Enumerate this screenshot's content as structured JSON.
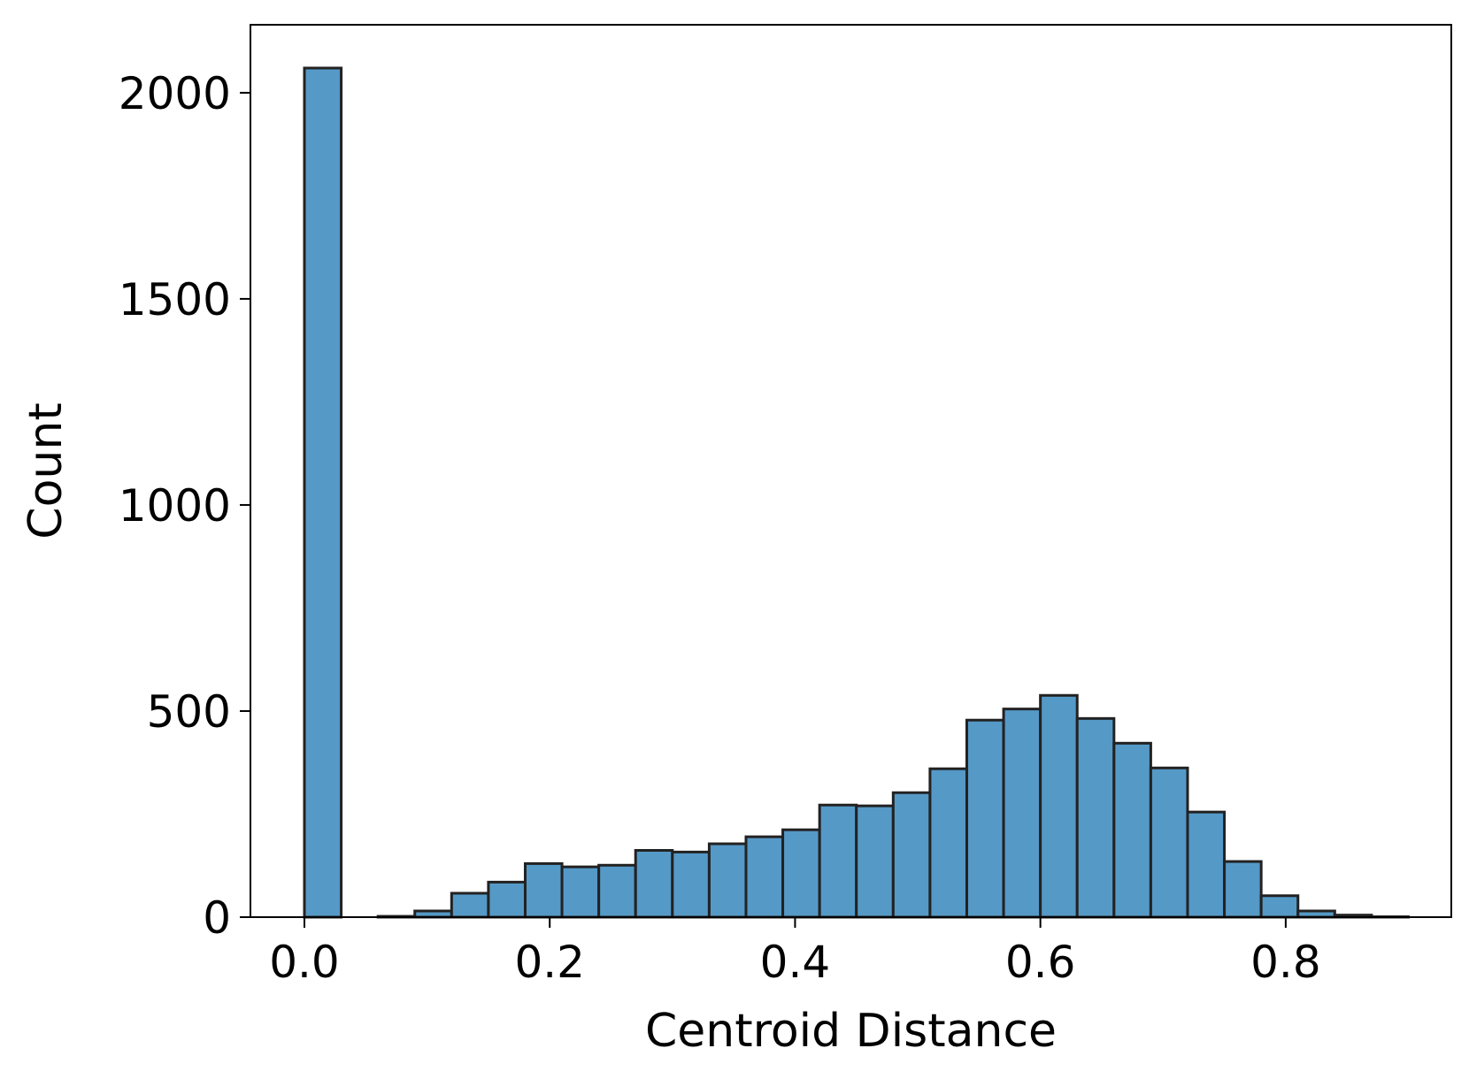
{
  "chart_data": {
    "type": "bar",
    "title": "",
    "xlabel": "Centroid Distance",
    "ylabel": "Count",
    "xlim": [
      -0.044,
      0.935
    ],
    "ylim": [
      0,
      2165
    ],
    "grid": false,
    "bar_color": "#5599c7",
    "edge_color": "#222222",
    "x_ticks": [
      0.0,
      0.2,
      0.4,
      0.6,
      0.8
    ],
    "x_tick_labels": [
      "0.0",
      "0.2",
      "0.4",
      "0.6",
      "0.8"
    ],
    "y_ticks": [
      0,
      500,
      1000,
      1500,
      2000
    ],
    "y_tick_labels": [
      "0",
      "500",
      "1000",
      "1500",
      "2000"
    ],
    "bins": [
      {
        "x0": 0.0,
        "x1": 0.03,
        "count": 2060
      },
      {
        "x0": 0.03,
        "x1": 0.06,
        "count": 0
      },
      {
        "x0": 0.06,
        "x1": 0.09,
        "count": 2
      },
      {
        "x0": 0.09,
        "x1": 0.12,
        "count": 15
      },
      {
        "x0": 0.12,
        "x1": 0.15,
        "count": 58
      },
      {
        "x0": 0.15,
        "x1": 0.18,
        "count": 85
      },
      {
        "x0": 0.18,
        "x1": 0.21,
        "count": 130
      },
      {
        "x0": 0.21,
        "x1": 0.24,
        "count": 122
      },
      {
        "x0": 0.24,
        "x1": 0.27,
        "count": 126
      },
      {
        "x0": 0.27,
        "x1": 0.3,
        "count": 162
      },
      {
        "x0": 0.3,
        "x1": 0.33,
        "count": 158
      },
      {
        "x0": 0.33,
        "x1": 0.36,
        "count": 178
      },
      {
        "x0": 0.36,
        "x1": 0.39,
        "count": 195
      },
      {
        "x0": 0.39,
        "x1": 0.42,
        "count": 212
      },
      {
        "x0": 0.42,
        "x1": 0.45,
        "count": 272
      },
      {
        "x0": 0.45,
        "x1": 0.48,
        "count": 270
      },
      {
        "x0": 0.48,
        "x1": 0.51,
        "count": 302
      },
      {
        "x0": 0.51,
        "x1": 0.54,
        "count": 360
      },
      {
        "x0": 0.54,
        "x1": 0.57,
        "count": 478
      },
      {
        "x0": 0.57,
        "x1": 0.6,
        "count": 505
      },
      {
        "x0": 0.6,
        "x1": 0.63,
        "count": 538
      },
      {
        "x0": 0.63,
        "x1": 0.66,
        "count": 482
      },
      {
        "x0": 0.66,
        "x1": 0.69,
        "count": 422
      },
      {
        "x0": 0.69,
        "x1": 0.72,
        "count": 362
      },
      {
        "x0": 0.72,
        "x1": 0.75,
        "count": 255
      },
      {
        "x0": 0.75,
        "x1": 0.78,
        "count": 135
      },
      {
        "x0": 0.78,
        "x1": 0.81,
        "count": 52
      },
      {
        "x0": 0.81,
        "x1": 0.84,
        "count": 15
      },
      {
        "x0": 0.84,
        "x1": 0.87,
        "count": 5
      },
      {
        "x0": 0.87,
        "x1": 0.9,
        "count": 1
      }
    ]
  }
}
